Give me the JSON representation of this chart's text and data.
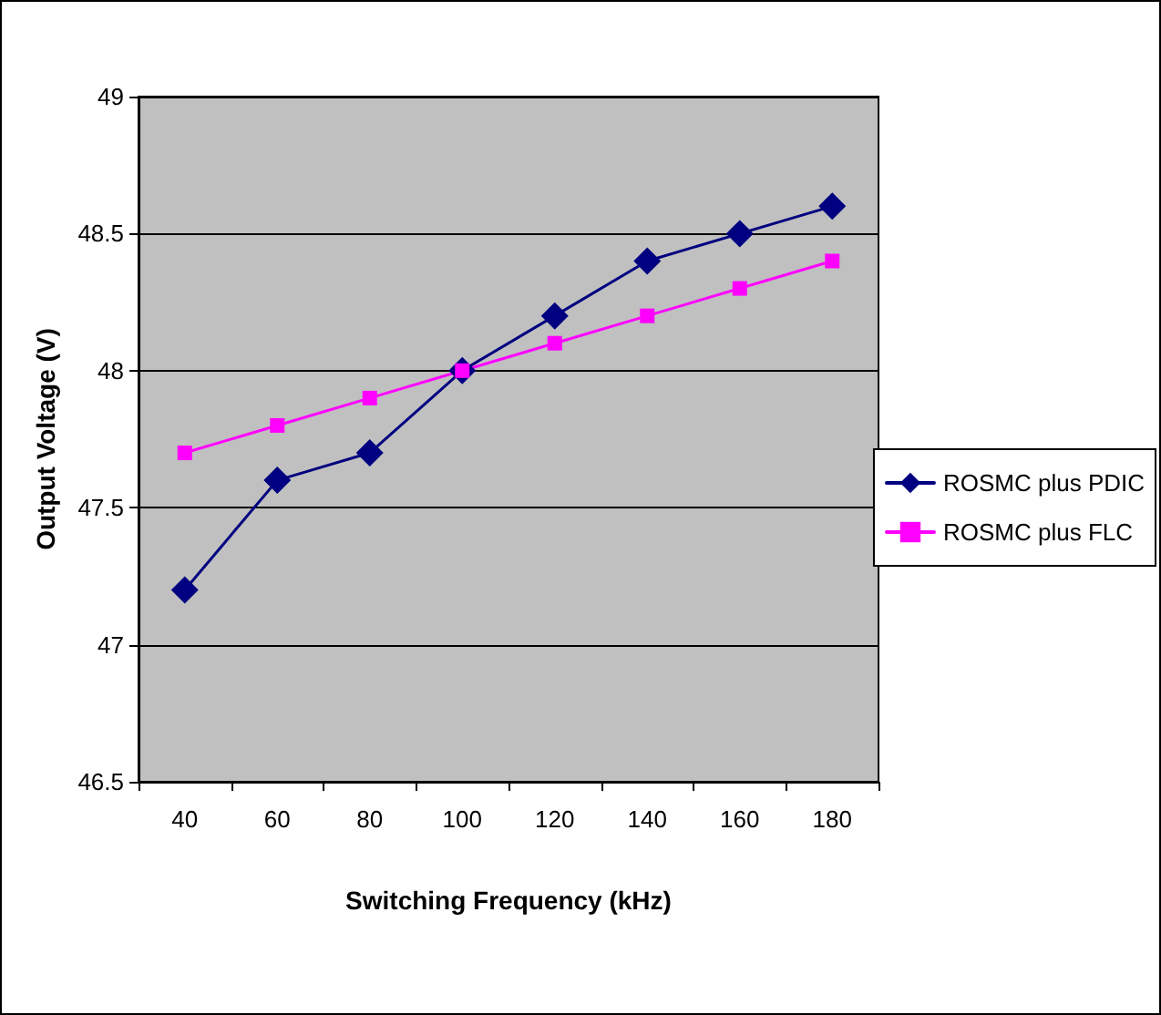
{
  "chart_data": {
    "type": "line",
    "xlabel": "Switching Frequency (kHz)",
    "ylabel": "Output Voltage (V)",
    "categories": [
      "40",
      "60",
      "80",
      "100",
      "120",
      "140",
      "160",
      "180"
    ],
    "series": [
      {
        "name": "ROSMC plus PDIC",
        "color": "#000080",
        "marker": "diamond",
        "values": [
          47.2,
          47.6,
          47.7,
          48.0,
          48.2,
          48.4,
          48.5,
          48.6
        ]
      },
      {
        "name": "ROSMC plus FLC",
        "color": "#ff00ff",
        "marker": "square",
        "values": [
          47.7,
          47.8,
          47.9,
          48.0,
          48.1,
          48.2,
          48.3,
          48.4
        ]
      }
    ],
    "ylim": [
      46.5,
      49
    ],
    "yticks": [
      46.5,
      47,
      47.5,
      48,
      48.5,
      49
    ],
    "grid": "y",
    "legend": "right",
    "line_style": "solid"
  }
}
